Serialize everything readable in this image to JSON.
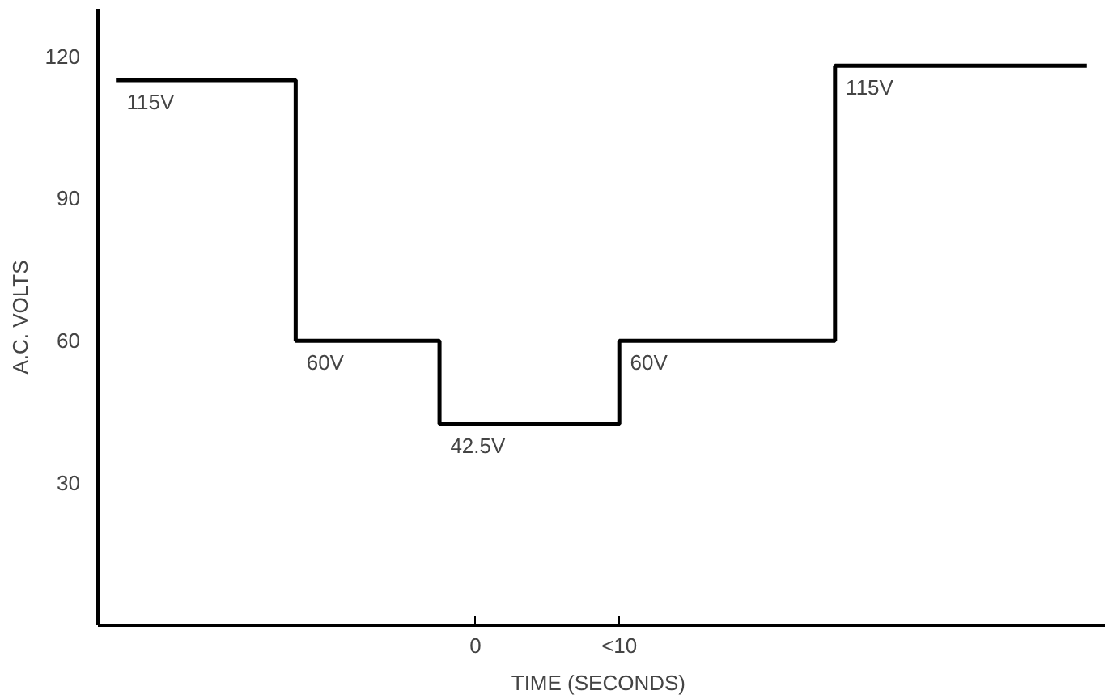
{
  "chart_data": {
    "type": "step",
    "xlabel": "TIME  (SECONDS)",
    "ylabel": "A.C. VOLTS",
    "categories": [
      null,
      null,
      null,
      null,
      null,
      null,
      null,
      null,
      null,
      null,
      "0",
      null,
      null,
      null,
      "<10",
      null,
      null,
      null,
      null,
      null,
      null,
      null,
      null,
      null,
      null,
      null,
      null,
      null
    ],
    "series": [
      {
        "color": "#000000",
        "values": [
          115,
          115,
          115,
          115,
          115,
          60,
          60,
          60,
          60,
          42.5,
          42.5,
          42.5,
          42.5,
          42.5,
          60,
          60,
          60,
          60,
          60,
          60,
          118,
          118,
          118,
          118,
          118,
          118,
          118,
          118
        ]
      }
    ],
    "ylim": [
      0,
      130
    ],
    "yticks": [
      30,
      60,
      90,
      120
    ],
    "marker": "none",
    "line_style": "solid",
    "annotations": [
      "115V",
      "60V",
      "42.5V",
      "60V",
      "115V"
    ]
  }
}
